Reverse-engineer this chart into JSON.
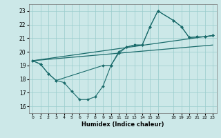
{
  "xlabel": "Humidex (Indice chaleur)",
  "background_color": "#cce8e8",
  "grid_color": "#99cccc",
  "line_color": "#1a6b6b",
  "xlim": [
    -0.5,
    23.5
  ],
  "ylim": [
    15.5,
    23.5
  ],
  "xticks": [
    0,
    1,
    2,
    3,
    4,
    5,
    6,
    7,
    8,
    9,
    10,
    11,
    12,
    13,
    14,
    15,
    16,
    18,
    19,
    20,
    21,
    22,
    23
  ],
  "yticks": [
    16,
    17,
    18,
    19,
    20,
    21,
    22,
    23
  ],
  "curve1_x": [
    0,
    1,
    2,
    3,
    4,
    5,
    6,
    7,
    8,
    9,
    10,
    11,
    12,
    13,
    14,
    15,
    16,
    18,
    19,
    20,
    21,
    22,
    23
  ],
  "curve1_y": [
    19.35,
    19.1,
    18.4,
    17.9,
    17.75,
    17.1,
    16.5,
    16.5,
    16.7,
    17.5,
    19.0,
    20.0,
    20.35,
    20.5,
    20.5,
    21.85,
    23.0,
    22.3,
    21.85,
    21.05,
    21.1,
    21.1,
    21.2
  ],
  "curve2_x": [
    0,
    1,
    2,
    3,
    9,
    10,
    11,
    12,
    13,
    14,
    15,
    16,
    18,
    19,
    20,
    21,
    22,
    23
  ],
  "curve2_y": [
    19.35,
    19.1,
    18.4,
    17.9,
    19.0,
    19.0,
    19.9,
    20.35,
    20.5,
    20.5,
    21.85,
    23.0,
    22.3,
    21.85,
    21.05,
    21.1,
    21.1,
    21.2
  ],
  "trend1_x": [
    0,
    23
  ],
  "trend1_y": [
    19.35,
    21.2
  ],
  "trend2_x": [
    0,
    23
  ],
  "trend2_y": [
    19.35,
    20.5
  ]
}
